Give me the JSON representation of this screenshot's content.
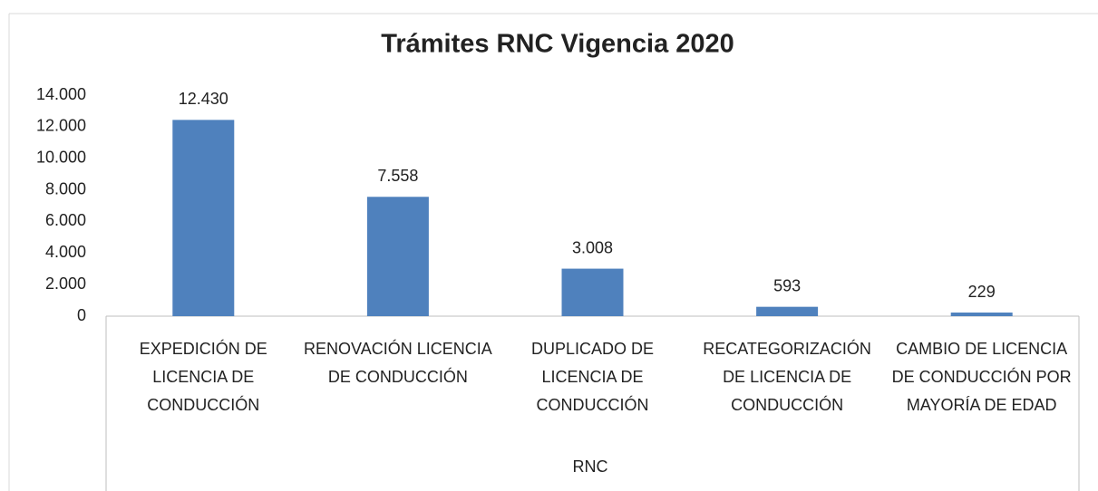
{
  "chart_data": {
    "type": "bar",
    "title": "Trámites RNC Vigencia 2020",
    "x_label": "RNC",
    "categories": [
      "EXPEDICIÓN DE LICENCIA DE CONDUCCIÓN",
      "RENOVACIÓN LICENCIA DE CONDUCCIÓN",
      "DUPLICADO DE LICENCIA DE CONDUCCIÓN",
      "RECATEGORIZACIÓN DE LICENCIA DE CONDUCCIÓN",
      "CAMBIO DE LICENCIA DE CONDUCCIÓN POR MAYORÍA DE EDAD"
    ],
    "values": [
      12430,
      7558,
      3008,
      593,
      229
    ],
    "value_labels": [
      "12.430",
      "7.558",
      "3.008",
      "593",
      "229"
    ],
    "color": "#4f81bd",
    "ylim": [
      0,
      14000
    ],
    "yticks": [
      0,
      {
        "value": 2000,
        "label": "2.000"
      },
      {
        "value": 4000,
        "label": "4.000"
      },
      {
        "value": 6000,
        "label": "6.000"
      },
      {
        "value": 8000,
        "label": "8.000"
      },
      {
        "value": 10000,
        "label": "10.000"
      },
      {
        "value": 12000,
        "label": "12.000"
      },
      {
        "value": 14000,
        "label": "14.000"
      }
    ],
    "grid": false
  }
}
